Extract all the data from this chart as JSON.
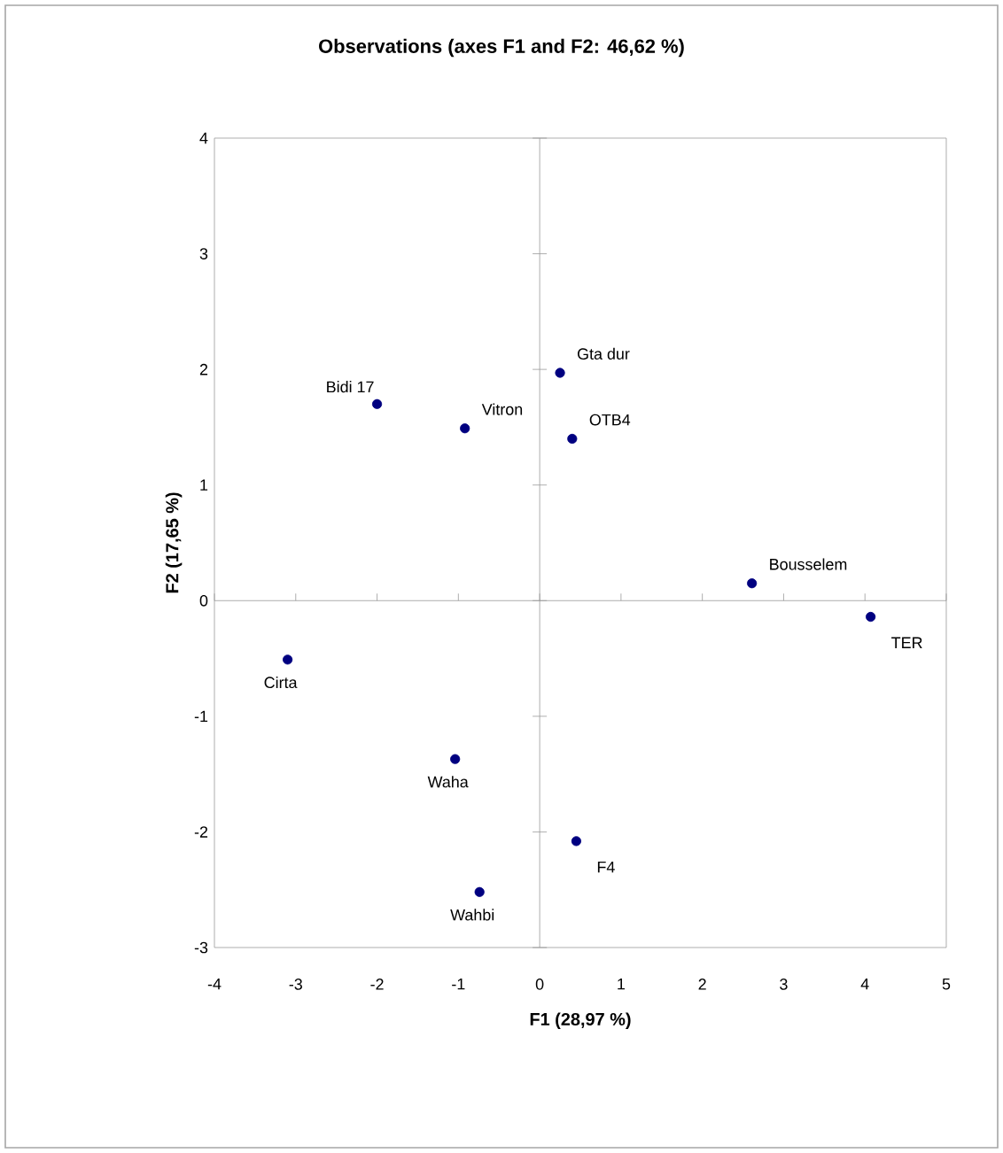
{
  "chart_data": {
    "type": "scatter",
    "title": "Observations (axes F1 and F2: 46,62 %)",
    "xlabel": "F1 (28,97 %)",
    "ylabel": "F2 (17,65 %)",
    "x": [
      -2.0,
      -0.92,
      0.25,
      0.4,
      2.61,
      4.07,
      -3.1,
      -1.04,
      0.45,
      -0.74
    ],
    "series": [
      {
        "color": "#000080",
        "values": [
          1.7,
          1.49,
          1.97,
          1.4,
          0.15,
          -0.14,
          -0.51,
          -1.37,
          -2.08,
          -2.52
        ]
      }
    ],
    "annotations": [
      {
        "text": "Bidi 17",
        "x": -2.0,
        "y": 1.7
      },
      {
        "text": "Vitron",
        "x": -0.92,
        "y": 1.49
      },
      {
        "text": "Gta dur",
        "x": 0.25,
        "y": 1.97
      },
      {
        "text": "OTB4",
        "x": 0.4,
        "y": 1.4
      },
      {
        "text": "Bousselem",
        "x": 2.61,
        "y": 0.15
      },
      {
        "text": "TER",
        "x": 4.07,
        "y": -0.14
      },
      {
        "text": "Cirta",
        "x": -3.1,
        "y": -0.51
      },
      {
        "text": "Waha",
        "x": -1.04,
        "y": -1.37
      },
      {
        "text": "F4",
        "x": 0.45,
        "y": -2.08
      },
      {
        "text": "Wahbi",
        "x": -0.74,
        "y": -2.52
      }
    ],
    "xlim": [
      -4,
      5
    ],
    "ylim": [
      -3,
      4
    ],
    "xticks": [
      -4,
      -3,
      -2,
      -1,
      0,
      1,
      2,
      3,
      4,
      5
    ],
    "yticks": [
      -3,
      -2,
      -1,
      0,
      1,
      2,
      3,
      4
    ]
  }
}
